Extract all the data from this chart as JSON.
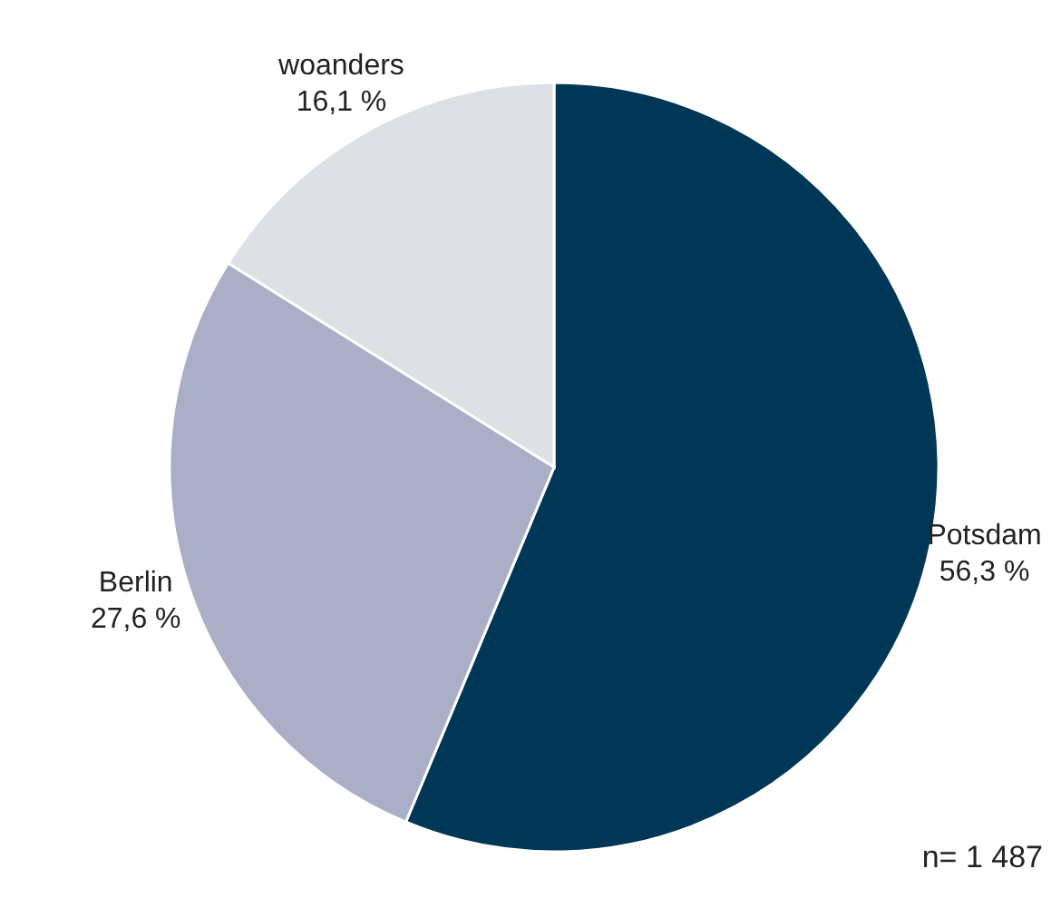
{
  "chart_data": {
    "type": "pie",
    "categories": [
      "Potsdam",
      "Berlin",
      "woanders"
    ],
    "values": [
      56.3,
      27.6,
      16.1
    ],
    "value_labels": [
      "56,3 %",
      "27,6 %",
      "16,1 %"
    ],
    "colors": [
      "#003756",
      "#aaaec6",
      "#dde1e5"
    ],
    "annotations": [
      "n= 1 487"
    ]
  }
}
